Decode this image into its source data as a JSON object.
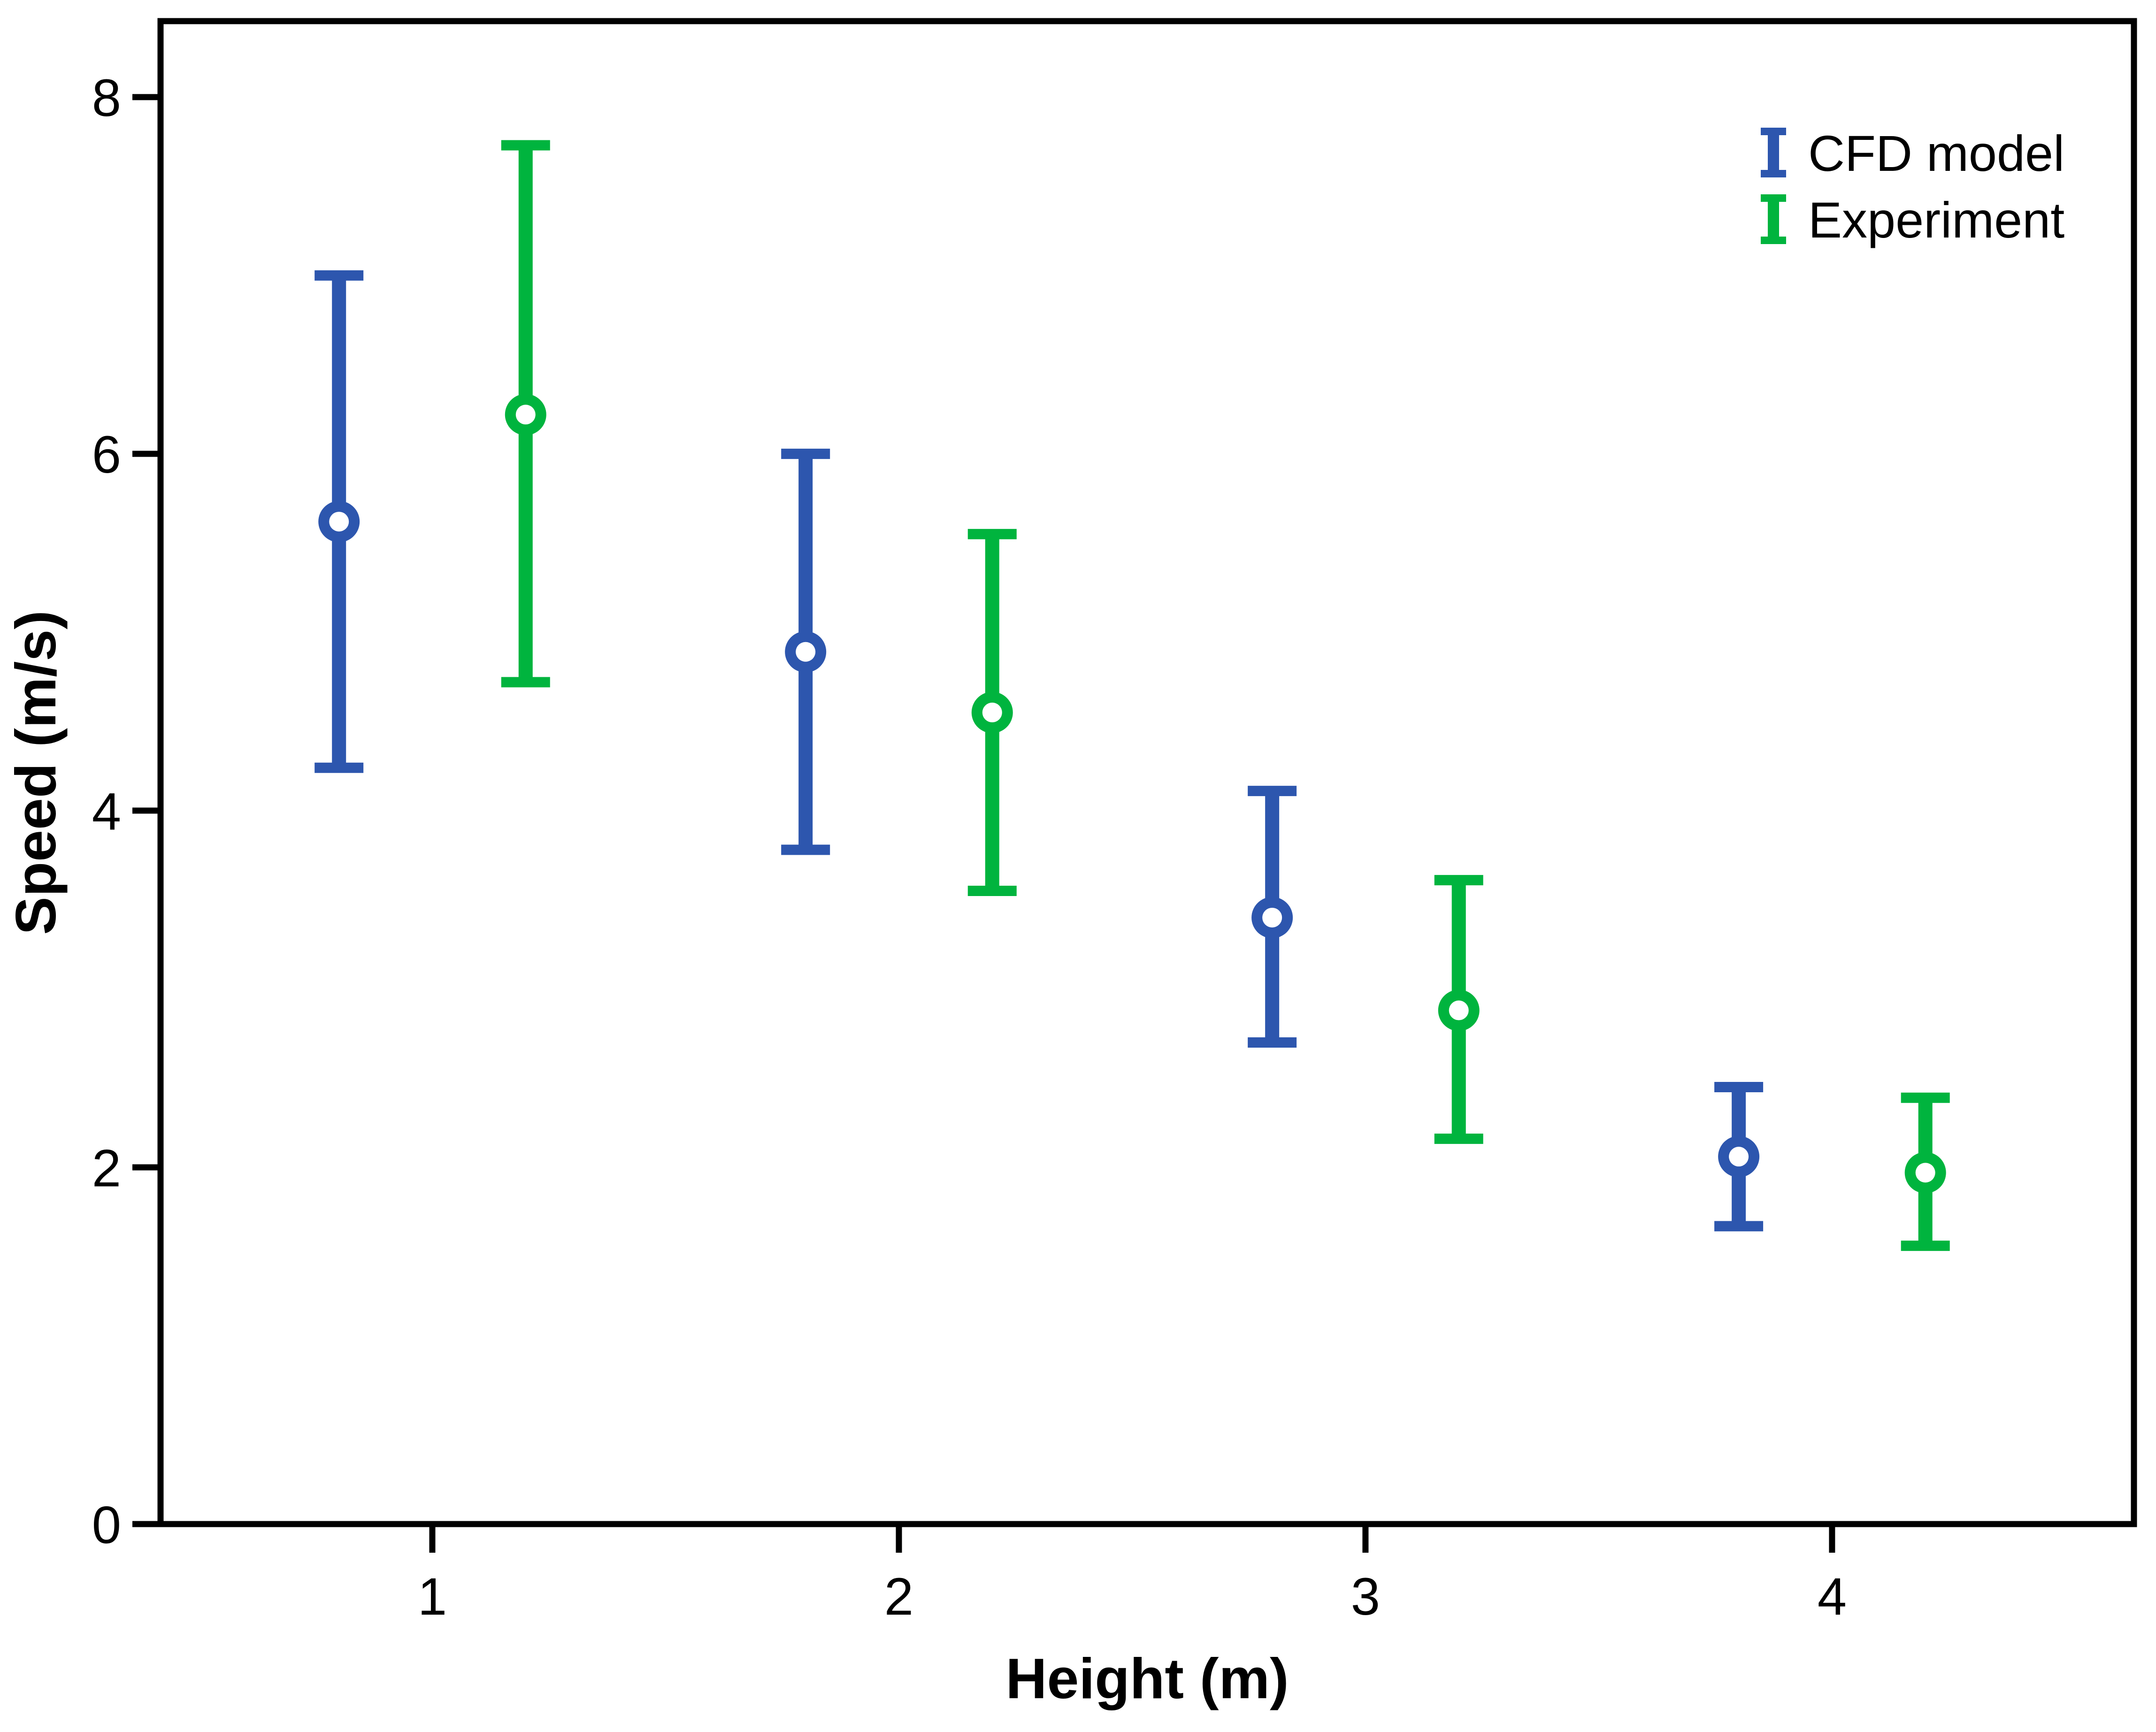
{
  "chart_data": {
    "type": "scatter",
    "subtype": "errorbar",
    "title": "",
    "xlabel": "Height (m)",
    "ylabel": "Speed (m/s)",
    "x_ticks": [
      1,
      2,
      3,
      4
    ],
    "y_ticks": [
      0,
      2,
      4,
      6,
      8
    ],
    "xlim": [
      0.4175,
      4.647
    ],
    "ylim": [
      0,
      8.426
    ],
    "grid": false,
    "legend_position": "top-right-inside",
    "background_color": "#ffffff",
    "frame_color": "#000000",
    "marker": "open-circle",
    "series": [
      {
        "name": "CFD model",
        "color": "#2d56ae",
        "points": [
          {
            "x": 0.8,
            "y": 5.62,
            "y_low": 4.24,
            "y_high": 7.0
          },
          {
            "x": 1.8,
            "y": 4.89,
            "y_low": 3.78,
            "y_high": 6.0
          },
          {
            "x": 2.8,
            "y": 3.4,
            "y_low": 2.7,
            "y_high": 4.11
          },
          {
            "x": 3.8,
            "y": 2.06,
            "y_low": 1.67,
            "y_high": 2.45
          }
        ]
      },
      {
        "name": "Experiment",
        "color": "#00b43e",
        "points": [
          {
            "x": 1.2,
            "y": 6.22,
            "y_low": 4.72,
            "y_high": 7.73
          },
          {
            "x": 2.2,
            "y": 4.55,
            "y_low": 3.55,
            "y_high": 5.55
          },
          {
            "x": 3.2,
            "y": 2.88,
            "y_low": 2.16,
            "y_high": 3.61
          },
          {
            "x": 4.2,
            "y": 1.97,
            "y_low": 1.56,
            "y_high": 2.39
          }
        ]
      }
    ]
  }
}
